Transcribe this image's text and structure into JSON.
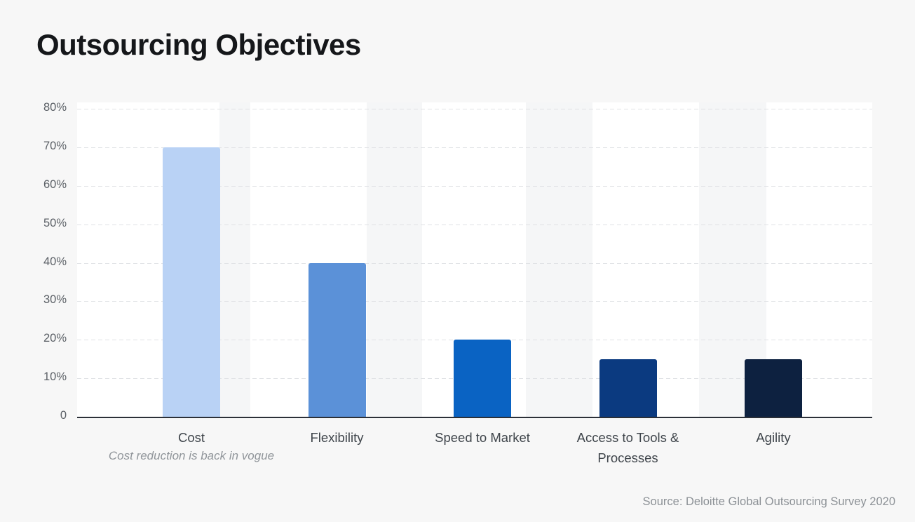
{
  "title": "Outsourcing Objectives",
  "annotation": {
    "text": "Cost reduction is back in vogue",
    "attached_to": "Cost"
  },
  "source": "Source: Deloitte Global Outsourcing Survey 2020",
  "y_axis": {
    "ticks": [
      {
        "label": "80%",
        "value": 80
      },
      {
        "label": "70%",
        "value": 70
      },
      {
        "label": "60%",
        "value": 60
      },
      {
        "label": "50%",
        "value": 50
      },
      {
        "label": "40%",
        "value": 40
      },
      {
        "label": "30%",
        "value": 30
      },
      {
        "label": "20%",
        "value": 20
      },
      {
        "label": "10%",
        "value": 10
      },
      {
        "label": "0",
        "value": 0
      }
    ]
  },
  "chart_data": {
    "type": "bar",
    "title": "Outsourcing Objectives",
    "categories": [
      "Cost",
      "Flexibility",
      "Speed to Market",
      "Access to Tools & Processes",
      "Agility"
    ],
    "values": [
      70,
      40,
      20,
      15,
      15
    ],
    "unit": "%",
    "bar_colors": [
      "#b9d2f5",
      "#5b91d8",
      "#0a63c3",
      "#0b3a80",
      "#0d2140"
    ],
    "xlabel": "",
    "ylabel": "",
    "ylim": [
      0,
      80
    ],
    "grid": "horizontal-dashed",
    "legend": "none",
    "annotations": [
      "Cost reduction is back in vogue"
    ],
    "source": "Source: Deloitte Global Outsourcing Survey 2020"
  },
  "colors": {
    "page_background": "#f7f7f7",
    "plot_background": "#ffffff",
    "plot_stripe": "#f5f6f7",
    "axis_line": "#2c3038",
    "gridline": "#e0e2e5",
    "title_text": "#15171a",
    "label_text": "#3f454b",
    "muted_text": "#8c9196"
  }
}
